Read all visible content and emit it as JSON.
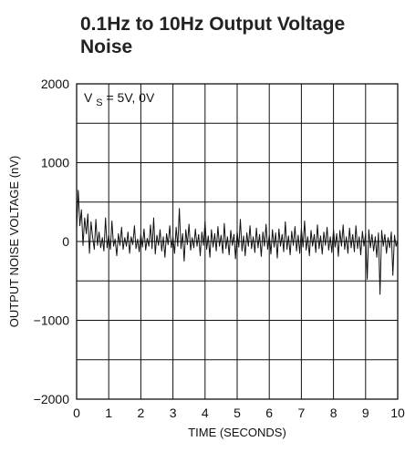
{
  "chart_data": {
    "type": "line",
    "title": "0.1Hz to 10Hz Output Voltage Noise",
    "xlabel": "TIME (SECONDS)",
    "ylabel": "OUTPUT NOISE VOLTAGE (nV)",
    "annotation": {
      "prefix": "V",
      "subscript": "S",
      "text": " = 5V, 0V"
    },
    "xlim": [
      0,
      10
    ],
    "ylim": [
      -2000,
      2000
    ],
    "x_ticks": [
      {
        "value": 0,
        "label": "0"
      },
      {
        "value": 1,
        "label": "1"
      },
      {
        "value": 2,
        "label": "2"
      },
      {
        "value": 3,
        "label": "3"
      },
      {
        "value": 4,
        "label": "4"
      },
      {
        "value": 5,
        "label": "5"
      },
      {
        "value": 6,
        "label": "6"
      },
      {
        "value": 7,
        "label": "7"
      },
      {
        "value": 8,
        "label": "8"
      },
      {
        "value": 9,
        "label": "9"
      },
      {
        "value": 10,
        "label": "10"
      }
    ],
    "y_ticks": [
      {
        "value": 2000,
        "label": "2000"
      },
      {
        "value": 1000,
        "label": "1000"
      },
      {
        "value": 0,
        "label": "0"
      },
      {
        "value": -1000,
        "label": "−1000"
      },
      {
        "value": -2000,
        "label": "−2000"
      }
    ],
    "grid": true,
    "series": [
      {
        "values": [
          [
            0.0,
            150
          ],
          [
            0.05,
            650
          ],
          [
            0.1,
            200
          ],
          [
            0.15,
            400
          ],
          [
            0.2,
            -50
          ],
          [
            0.25,
            300
          ],
          [
            0.3,
            100
          ],
          [
            0.35,
            350
          ],
          [
            0.4,
            -150
          ],
          [
            0.45,
            250
          ],
          [
            0.5,
            50
          ],
          [
            0.55,
            -100
          ],
          [
            0.6,
            280
          ],
          [
            0.65,
            -50
          ],
          [
            0.7,
            120
          ],
          [
            0.75,
            -80
          ],
          [
            0.8,
            50
          ],
          [
            0.85,
            -120
          ],
          [
            0.9,
            300
          ],
          [
            0.95,
            -80
          ],
          [
            1.0,
            80
          ],
          [
            1.05,
            -100
          ],
          [
            1.1,
            260
          ],
          [
            1.15,
            -60
          ],
          [
            1.2,
            30
          ],
          [
            1.25,
            -180
          ],
          [
            1.3,
            100
          ],
          [
            1.35,
            -50
          ],
          [
            1.4,
            180
          ],
          [
            1.45,
            -100
          ],
          [
            1.5,
            50
          ],
          [
            1.55,
            -60
          ],
          [
            1.6,
            120
          ],
          [
            1.65,
            -150
          ],
          [
            1.7,
            60
          ],
          [
            1.75,
            -40
          ],
          [
            1.8,
            200
          ],
          [
            1.85,
            -90
          ],
          [
            1.9,
            30
          ],
          [
            1.95,
            -130
          ],
          [
            2.0,
            90
          ],
          [
            2.05,
            -70
          ],
          [
            2.1,
            160
          ],
          [
            2.15,
            -110
          ],
          [
            2.2,
            40
          ],
          [
            2.25,
            -60
          ],
          [
            2.3,
            210
          ],
          [
            2.35,
            -90
          ],
          [
            2.4,
            300
          ],
          [
            2.45,
            -160
          ],
          [
            2.5,
            80
          ],
          [
            2.55,
            -50
          ],
          [
            2.6,
            150
          ],
          [
            2.65,
            -120
          ],
          [
            2.7,
            60
          ],
          [
            2.75,
            -200
          ],
          [
            2.8,
            100
          ],
          [
            2.85,
            -40
          ],
          [
            2.9,
            200
          ],
          [
            2.95,
            -80
          ],
          [
            3.0,
            60
          ],
          [
            3.05,
            -150
          ],
          [
            3.1,
            180
          ],
          [
            3.15,
            -60
          ],
          [
            3.2,
            420
          ],
          [
            3.25,
            -90
          ],
          [
            3.3,
            100
          ],
          [
            3.35,
            -250
          ],
          [
            3.4,
            150
          ],
          [
            3.45,
            -40
          ],
          [
            3.5,
            220
          ],
          [
            3.55,
            -110
          ],
          [
            3.6,
            50
          ],
          [
            3.65,
            -80
          ],
          [
            3.7,
            160
          ],
          [
            3.75,
            -60
          ],
          [
            3.8,
            90
          ],
          [
            3.85,
            -180
          ],
          [
            3.9,
            120
          ],
          [
            3.95,
            -50
          ],
          [
            4.0,
            250
          ],
          [
            4.05,
            -100
          ],
          [
            4.1,
            70
          ],
          [
            4.15,
            -200
          ],
          [
            4.2,
            150
          ],
          [
            4.25,
            -70
          ],
          [
            4.3,
            100
          ],
          [
            4.35,
            -120
          ],
          [
            4.4,
            190
          ],
          [
            4.45,
            -60
          ],
          [
            4.5,
            80
          ],
          [
            4.55,
            -150
          ],
          [
            4.6,
            230
          ],
          [
            4.65,
            -90
          ],
          [
            4.7,
            60
          ],
          [
            4.75,
            -170
          ],
          [
            4.8,
            140
          ],
          [
            4.85,
            -50
          ],
          [
            4.9,
            90
          ],
          [
            4.95,
            -220
          ],
          [
            5.0,
            130
          ],
          [
            5.05,
            -70
          ],
          [
            5.1,
            280
          ],
          [
            5.15,
            -120
          ],
          [
            5.2,
            70
          ],
          [
            5.25,
            -180
          ],
          [
            5.3,
            110
          ],
          [
            5.35,
            -60
          ],
          [
            5.4,
            200
          ],
          [
            5.45,
            -90
          ],
          [
            5.5,
            60
          ],
          [
            5.55,
            -140
          ],
          [
            5.6,
            170
          ],
          [
            5.65,
            -80
          ],
          [
            5.7,
            90
          ],
          [
            5.75,
            -190
          ],
          [
            5.8,
            120
          ],
          [
            5.85,
            -60
          ],
          [
            5.9,
            220
          ],
          [
            5.95,
            -100
          ],
          [
            6.0,
            80
          ],
          [
            6.05,
            -160
          ],
          [
            6.1,
            150
          ],
          [
            6.15,
            -70
          ],
          [
            6.2,
            110
          ],
          [
            6.25,
            -210
          ],
          [
            6.3,
            160
          ],
          [
            6.35,
            -60
          ],
          [
            6.4,
            90
          ],
          [
            6.45,
            -130
          ],
          [
            6.5,
            250
          ],
          [
            6.55,
            -100
          ],
          [
            6.6,
            70
          ],
          [
            6.65,
            -170
          ],
          [
            6.7,
            130
          ],
          [
            6.75,
            -50
          ],
          [
            6.8,
            190
          ],
          [
            6.85,
            -120
          ],
          [
            6.9,
            80
          ],
          [
            6.95,
            -150
          ],
          [
            7.0,
            160
          ],
          [
            7.05,
            -70
          ],
          [
            7.1,
            260
          ],
          [
            7.15,
            -110
          ],
          [
            7.2,
            60
          ],
          [
            7.25,
            -180
          ],
          [
            7.3,
            140
          ],
          [
            7.35,
            -60
          ],
          [
            7.4,
            90
          ],
          [
            7.45,
            -140
          ],
          [
            7.5,
            210
          ],
          [
            7.55,
            -90
          ],
          [
            7.6,
            70
          ],
          [
            7.65,
            -160
          ],
          [
            7.7,
            120
          ],
          [
            7.75,
            -50
          ],
          [
            7.8,
            180
          ],
          [
            7.85,
            -110
          ],
          [
            7.9,
            60
          ],
          [
            7.95,
            -140
          ],
          [
            8.0,
            150
          ],
          [
            8.05,
            -70
          ],
          [
            8.1,
            100
          ],
          [
            8.15,
            -190
          ],
          [
            8.2,
            140
          ],
          [
            8.25,
            -60
          ],
          [
            8.3,
            210
          ],
          [
            8.35,
            -100
          ],
          [
            8.4,
            60
          ],
          [
            8.45,
            -150
          ],
          [
            8.5,
            170
          ],
          [
            8.55,
            -80
          ],
          [
            8.6,
            90
          ],
          [
            8.65,
            -130
          ],
          [
            8.7,
            200
          ],
          [
            8.75,
            -90
          ],
          [
            8.8,
            60
          ],
          [
            8.85,
            -170
          ],
          [
            8.9,
            130
          ],
          [
            8.95,
            -60
          ],
          [
            9.0,
            100
          ],
          [
            9.05,
            -480
          ],
          [
            9.1,
            150
          ],
          [
            9.15,
            -80
          ],
          [
            9.2,
            90
          ],
          [
            9.25,
            -120
          ],
          [
            9.3,
            60
          ],
          [
            9.35,
            -200
          ],
          [
            9.4,
            110
          ],
          [
            9.45,
            -670
          ],
          [
            9.5,
            140
          ],
          [
            9.55,
            -60
          ],
          [
            9.6,
            90
          ],
          [
            9.65,
            -150
          ],
          [
            9.7,
            50
          ],
          [
            9.75,
            -80
          ],
          [
            9.8,
            120
          ],
          [
            9.85,
            -430
          ],
          [
            9.9,
            80
          ],
          [
            9.95,
            -60
          ],
          [
            10.0,
            20
          ]
        ]
      }
    ]
  }
}
